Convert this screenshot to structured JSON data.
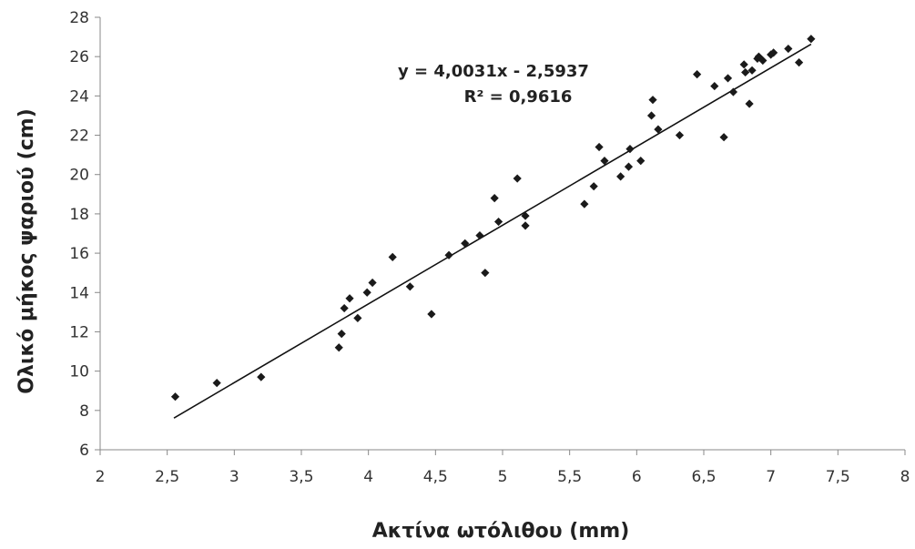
{
  "chart_data": {
    "type": "scatter",
    "title": "",
    "xlabel": "Ακτίνα ωτόλιθου (mm)",
    "ylabel": "Ολικό μήκος ψαριού (cm)",
    "xlim": [
      2,
      8
    ],
    "ylim": [
      6,
      28
    ],
    "x_ticks": [
      2,
      2.5,
      3,
      3.5,
      4,
      4.5,
      5,
      5.5,
      6,
      6.5,
      7,
      7.5,
      8
    ],
    "x_tick_labels": [
      "2",
      "2,5",
      "3",
      "3,5",
      "4",
      "4,5",
      "5",
      "5,5",
      "6",
      "6,5",
      "7",
      "7,5",
      "8"
    ],
    "y_ticks": [
      6,
      8,
      10,
      12,
      14,
      16,
      18,
      20,
      22,
      24,
      26,
      28
    ],
    "y_tick_labels": [
      "6",
      "8",
      "10",
      "12",
      "14",
      "16",
      "18",
      "20",
      "22",
      "24",
      "26",
      "28"
    ],
    "grid": false,
    "legend": "none",
    "marker_color": "#1a1a1a",
    "trendline": {
      "slope": 4.0031,
      "intercept": -2.5937,
      "x_range": [
        2.55,
        7.3
      ],
      "equation": "y = 4,0031x - 2,5937",
      "r_squared": "R² = 0,9616"
    },
    "points": [
      {
        "x": 2.56,
        "y": 8.7
      },
      {
        "x": 2.87,
        "y": 9.4
      },
      {
        "x": 3.2,
        "y": 9.7
      },
      {
        "x": 3.78,
        "y": 11.2
      },
      {
        "x": 3.8,
        "y": 11.9
      },
      {
        "x": 3.82,
        "y": 13.2
      },
      {
        "x": 3.86,
        "y": 13.7
      },
      {
        "x": 3.92,
        "y": 12.7
      },
      {
        "x": 3.99,
        "y": 14.0
      },
      {
        "x": 4.03,
        "y": 14.5
      },
      {
        "x": 4.18,
        "y": 15.8
      },
      {
        "x": 4.31,
        "y": 14.3
      },
      {
        "x": 4.47,
        "y": 12.9
      },
      {
        "x": 4.6,
        "y": 15.9
      },
      {
        "x": 4.72,
        "y": 16.5
      },
      {
        "x": 4.83,
        "y": 16.9
      },
      {
        "x": 4.87,
        "y": 15.0
      },
      {
        "x": 4.94,
        "y": 18.8
      },
      {
        "x": 4.97,
        "y": 17.6
      },
      {
        "x": 5.11,
        "y": 19.8
      },
      {
        "x": 5.17,
        "y": 17.9
      },
      {
        "x": 5.17,
        "y": 17.4
      },
      {
        "x": 5.61,
        "y": 18.5
      },
      {
        "x": 5.68,
        "y": 19.4
      },
      {
        "x": 5.72,
        "y": 21.4
      },
      {
        "x": 5.76,
        "y": 20.7
      },
      {
        "x": 5.88,
        "y": 19.9
      },
      {
        "x": 5.94,
        "y": 20.4
      },
      {
        "x": 5.95,
        "y": 21.3
      },
      {
        "x": 6.03,
        "y": 20.7
      },
      {
        "x": 6.11,
        "y": 23.0
      },
      {
        "x": 6.12,
        "y": 23.8
      },
      {
        "x": 6.16,
        "y": 22.3
      },
      {
        "x": 6.32,
        "y": 22.0
      },
      {
        "x": 6.45,
        "y": 25.1
      },
      {
        "x": 6.58,
        "y": 24.5
      },
      {
        "x": 6.65,
        "y": 21.9
      },
      {
        "x": 6.68,
        "y": 24.9
      },
      {
        "x": 6.72,
        "y": 24.2
      },
      {
        "x": 6.8,
        "y": 25.6
      },
      {
        "x": 6.81,
        "y": 25.2
      },
      {
        "x": 6.84,
        "y": 23.6
      },
      {
        "x": 6.86,
        "y": 25.3
      },
      {
        "x": 6.9,
        "y": 25.9
      },
      {
        "x": 6.91,
        "y": 26.0
      },
      {
        "x": 6.94,
        "y": 25.8
      },
      {
        "x": 7.0,
        "y": 26.1
      },
      {
        "x": 7.02,
        "y": 26.2
      },
      {
        "x": 7.13,
        "y": 26.4
      },
      {
        "x": 7.21,
        "y": 25.7
      },
      {
        "x": 7.3,
        "y": 26.9
      }
    ]
  }
}
